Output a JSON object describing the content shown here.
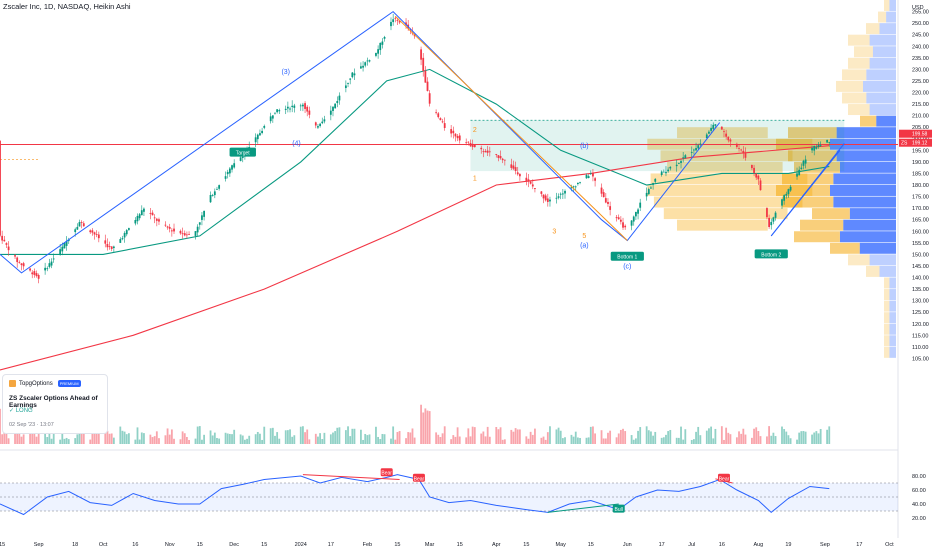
{
  "header": {
    "symbol_title": "Zscaler Inc, 1D, NASDAQ, Heikin Ashi"
  },
  "idea_card": {
    "brand": "TopgOptions",
    "badge": "PREMIUM",
    "title": "ZS Zscaler Options Ahead of Earnings",
    "side": "✓ LONG",
    "date": "02 Sep '23 · 13:07"
  },
  "chart_data": {
    "type": "candlestick",
    "series_style": "Heikin Ashi",
    "x_range": [
      "2023-08-14",
      "2024-10-05"
    ],
    "ylim": [
      100,
      260
    ],
    "ycurrency": "USD",
    "price_ticks": [
      105,
      110,
      115,
      120,
      125,
      130,
      135,
      140,
      145,
      150,
      155,
      160,
      165,
      170,
      175,
      180,
      185,
      190,
      195,
      200,
      205,
      210,
      215,
      220,
      225,
      230,
      235,
      240,
      245,
      250,
      255
    ],
    "price_labels": {
      "last": "199.58",
      "marker_symbol": "ZS",
      "marker_value": "199.12"
    },
    "horizontal_level": 197.5,
    "x_ticks": [
      {
        "date": "2023-08-15",
        "label": "15"
      },
      {
        "date": "2023-09-01",
        "label": "Sep"
      },
      {
        "date": "2023-09-18",
        "label": "18"
      },
      {
        "date": "2023-10-01",
        "label": "Oct"
      },
      {
        "date": "2023-10-16",
        "label": "16"
      },
      {
        "date": "2023-11-01",
        "label": "Nov"
      },
      {
        "date": "2023-11-15",
        "label": "15"
      },
      {
        "date": "2023-12-01",
        "label": "Dec"
      },
      {
        "date": "2023-12-15",
        "label": "15"
      },
      {
        "date": "2024-01-01",
        "label": "2024"
      },
      {
        "date": "2024-01-15",
        "label": "17"
      },
      {
        "date": "2024-02-01",
        "label": "Feb"
      },
      {
        "date": "2024-02-15",
        "label": "15"
      },
      {
        "date": "2024-03-01",
        "label": "Mar"
      },
      {
        "date": "2024-03-15",
        "label": "15"
      },
      {
        "date": "2024-04-01",
        "label": "Apr"
      },
      {
        "date": "2024-04-15",
        "label": "15"
      },
      {
        "date": "2024-05-01",
        "label": "May"
      },
      {
        "date": "2024-05-15",
        "label": "15"
      },
      {
        "date": "2024-06-01",
        "label": "Jun"
      },
      {
        "date": "2024-06-17",
        "label": "17"
      },
      {
        "date": "2024-07-01",
        "label": "Jul"
      },
      {
        "date": "2024-07-15",
        "label": "16"
      },
      {
        "date": "2024-08-01",
        "label": "Aug"
      },
      {
        "date": "2024-08-15",
        "label": "19"
      },
      {
        "date": "2024-09-01",
        "label": "Sep"
      },
      {
        "date": "2024-09-17",
        "label": "17"
      },
      {
        "date": "2024-10-01",
        "label": "Oct"
      }
    ],
    "price_path": [
      [
        "2023-08-14",
        158
      ],
      [
        "2023-08-22",
        147
      ],
      [
        "2023-09-01",
        140
      ],
      [
        "2023-09-12",
        153
      ],
      [
        "2023-09-20",
        164
      ],
      [
        "2023-09-28",
        158
      ],
      [
        "2023-10-05",
        152
      ],
      [
        "2023-10-12",
        160
      ],
      [
        "2023-10-20",
        170
      ],
      [
        "2023-10-28",
        163
      ],
      [
        "2023-11-03",
        160
      ],
      [
        "2023-11-12",
        158
      ],
      [
        "2023-11-20",
        175
      ],
      [
        "2023-11-30",
        188
      ],
      [
        "2023-12-08",
        196
      ],
      [
        "2023-12-20",
        212
      ],
      [
        "2024-01-02",
        215
      ],
      [
        "2024-01-08",
        205
      ],
      [
        "2024-01-15",
        212
      ],
      [
        "2024-01-25",
        228
      ],
      [
        "2024-02-05",
        237
      ],
      [
        "2024-02-13",
        252
      ],
      [
        "2024-02-18",
        250
      ],
      [
        "2024-02-24",
        243
      ],
      [
        "2024-02-27",
        230
      ],
      [
        "2024-03-01",
        215
      ],
      [
        "2024-03-08",
        205
      ],
      [
        "2024-03-15",
        200
      ],
      [
        "2024-03-25",
        195
      ],
      [
        "2024-04-03",
        192
      ],
      [
        "2024-04-15",
        182
      ],
      [
        "2024-04-25",
        173
      ],
      [
        "2024-05-05",
        178
      ],
      [
        "2024-05-15",
        185
      ],
      [
        "2024-05-25",
        168
      ],
      [
        "2024-06-01",
        160
      ],
      [
        "2024-06-07",
        172
      ],
      [
        "2024-06-15",
        184
      ],
      [
        "2024-06-25",
        190
      ],
      [
        "2024-07-05",
        198
      ],
      [
        "2024-07-12",
        207
      ],
      [
        "2024-07-18",
        200
      ],
      [
        "2024-07-25",
        194
      ],
      [
        "2024-08-01",
        182
      ],
      [
        "2024-08-06",
        162
      ],
      [
        "2024-08-10",
        170
      ],
      [
        "2024-08-18",
        183
      ],
      [
        "2024-08-25",
        195
      ],
      [
        "2024-08-30",
        198
      ],
      [
        "2024-09-03",
        199.12
      ]
    ],
    "moving_averages": [
      {
        "name": "MA fast",
        "color": "#089981",
        "points": [
          [
            "2023-08-14",
            150
          ],
          [
            "2023-10-01",
            150
          ],
          [
            "2023-11-15",
            158
          ],
          [
            "2024-01-01",
            190
          ],
          [
            "2024-02-10",
            225
          ],
          [
            "2024-03-01",
            230
          ],
          [
            "2024-04-01",
            215
          ],
          [
            "2024-05-01",
            195
          ],
          [
            "2024-06-10",
            180
          ],
          [
            "2024-07-15",
            185
          ],
          [
            "2024-08-15",
            185
          ],
          [
            "2024-09-03",
            188
          ]
        ]
      },
      {
        "name": "MA slow",
        "color": "#f23645",
        "points": [
          [
            "2023-08-14",
            100
          ],
          [
            "2023-10-15",
            115
          ],
          [
            "2023-12-15",
            135
          ],
          [
            "2024-02-15",
            160
          ],
          [
            "2024-04-01",
            180
          ],
          [
            "2024-05-15",
            185
          ],
          [
            "2024-07-01",
            192
          ],
          [
            "2024-09-03",
            197
          ]
        ]
      }
    ],
    "volume_profile": [
      {
        "low": 105,
        "high": 110,
        "vol": 0.1
      },
      {
        "low": 110,
        "high": 115,
        "vol": 0.1
      },
      {
        "low": 115,
        "high": 120,
        "vol": 0.1
      },
      {
        "low": 120,
        "high": 125,
        "vol": 0.1
      },
      {
        "low": 125,
        "high": 130,
        "vol": 0.1
      },
      {
        "low": 130,
        "high": 135,
        "vol": 0.1
      },
      {
        "low": 135,
        "high": 140,
        "vol": 0.1
      },
      {
        "low": 140,
        "high": 145,
        "vol": 0.25
      },
      {
        "low": 145,
        "high": 150,
        "vol": 0.4
      },
      {
        "low": 150,
        "high": 155,
        "vol": 0.55
      },
      {
        "low": 155,
        "high": 160,
        "vol": 0.85
      },
      {
        "low": 160,
        "high": 165,
        "vol": 0.8
      },
      {
        "low": 165,
        "high": 170,
        "vol": 0.7
      },
      {
        "low": 170,
        "high": 175,
        "vol": 0.95
      },
      {
        "low": 175,
        "high": 180,
        "vol": 1.0
      },
      {
        "low": 180,
        "high": 185,
        "vol": 0.95
      },
      {
        "low": 185,
        "high": 190,
        "vol": 0.85
      },
      {
        "low": 190,
        "high": 195,
        "vol": 0.9
      },
      {
        "low": 195,
        "high": 200,
        "vol": 1.0
      },
      {
        "low": 200,
        "high": 205,
        "vol": 0.9
      },
      {
        "low": 205,
        "high": 210,
        "vol": 0.3
      },
      {
        "low": 210,
        "high": 215,
        "vol": 0.4
      },
      {
        "low": 215,
        "high": 220,
        "vol": 0.45
      },
      {
        "low": 220,
        "high": 225,
        "vol": 0.5
      },
      {
        "low": 225,
        "high": 230,
        "vol": 0.45
      },
      {
        "low": 230,
        "high": 235,
        "vol": 0.4
      },
      {
        "low": 235,
        "high": 240,
        "vol": 0.35
      },
      {
        "low": 240,
        "high": 245,
        "vol": 0.4
      },
      {
        "low": 245,
        "high": 250,
        "vol": 0.25
      },
      {
        "low": 250,
        "high": 255,
        "vol": 0.15
      },
      {
        "low": 255,
        "high": 260,
        "vol": 0.1
      }
    ],
    "trend_lines": [
      {
        "color": "#2962ff",
        "points": [
          [
            "2023-08-14",
            150
          ],
          [
            "2023-08-24",
            142
          ],
          [
            "2024-02-13",
            255
          ],
          [
            "2024-05-20",
            165
          ],
          [
            "2024-06-01",
            156
          ],
          [
            "2024-07-14",
            207
          ]
        ]
      },
      {
        "color": "#f7931a",
        "points": [
          [
            "2024-02-14",
            253
          ],
          [
            "2024-06-01",
            156
          ]
        ]
      },
      {
        "color": "#2962ff",
        "points": [
          [
            "2024-08-07",
            158
          ],
          [
            "2024-09-08",
            195
          ]
        ]
      },
      {
        "color": "#2962ff",
        "points": [
          [
            "2024-08-07",
            158
          ],
          [
            "2024-09-10",
            198
          ]
        ]
      }
    ],
    "wave_labels": [
      {
        "date": "2023-12-25",
        "price": 228,
        "text": "(3)",
        "color": "#2962ff"
      },
      {
        "date": "2023-12-30",
        "price": 197,
        "text": "(4)",
        "color": "#2962ff"
      },
      {
        "date": "2024-03-22",
        "price": 203,
        "text": "2",
        "color": "#f7931a"
      },
      {
        "date": "2024-03-22",
        "price": 182,
        "text": "1",
        "color": "#f7931a"
      },
      {
        "date": "2024-04-28",
        "price": 159,
        "text": "3",
        "color": "#f7931a"
      },
      {
        "date": "2024-05-12",
        "price": 196,
        "text": "(b)",
        "color": "#2962ff"
      },
      {
        "date": "2024-05-12",
        "price": 157,
        "text": "5",
        "color": "#f7931a"
      },
      {
        "date": "2024-05-12",
        "price": 153,
        "text": "(a)",
        "color": "#2962ff"
      },
      {
        "date": "2024-06-01",
        "price": 144,
        "text": "(c)",
        "color": "#2962ff"
      }
    ],
    "tags": [
      {
        "date": "2023-12-05",
        "price": 194,
        "text": "Target",
        "color": "#089981"
      },
      {
        "date": "2024-06-01",
        "price": 149,
        "text": "Bottom 1",
        "color": "#089981"
      },
      {
        "date": "2024-08-07",
        "price": 150,
        "text": "Bottom 2",
        "color": "#089981"
      }
    ],
    "rsi": {
      "ticks": [
        20,
        40,
        60,
        80
      ],
      "band": [
        30,
        70
      ],
      "points": [
        [
          "2023-08-14",
          40
        ],
        [
          "2023-08-25",
          25
        ],
        [
          "2023-09-05",
          50
        ],
        [
          "2023-09-15",
          58
        ],
        [
          "2023-09-25",
          42
        ],
        [
          "2023-10-05",
          38
        ],
        [
          "2023-10-15",
          55
        ],
        [
          "2023-10-25",
          45
        ],
        [
          "2023-11-05",
          40
        ],
        [
          "2023-11-15",
          40
        ],
        [
          "2023-11-25",
          62
        ],
        [
          "2023-12-05",
          68
        ],
        [
          "2023-12-15",
          75
        ],
        [
          "2024-01-01",
          80
        ],
        [
          "2024-01-10",
          70
        ],
        [
          "2024-01-20",
          78
        ],
        [
          "2024-02-01",
          72
        ],
        [
          "2024-02-10",
          78
        ],
        [
          "2024-02-15",
          82
        ],
        [
          "2024-02-25",
          75
        ],
        [
          "2024-03-01",
          50
        ],
        [
          "2024-03-10",
          42
        ],
        [
          "2024-03-20",
          45
        ],
        [
          "2024-04-01",
          38
        ],
        [
          "2024-04-15",
          32
        ],
        [
          "2024-04-25",
          28
        ],
        [
          "2024-05-05",
          40
        ],
        [
          "2024-05-15",
          45
        ],
        [
          "2024-05-28",
          32
        ],
        [
          "2024-06-05",
          50
        ],
        [
          "2024-06-15",
          60
        ],
        [
          "2024-06-25",
          58
        ],
        [
          "2024-07-05",
          65
        ],
        [
          "2024-07-14",
          75
        ],
        [
          "2024-07-22",
          60
        ],
        [
          "2024-08-01",
          45
        ],
        [
          "2024-08-07",
          28
        ],
        [
          "2024-08-15",
          48
        ],
        [
          "2024-08-25",
          65
        ],
        [
          "2024-09-03",
          62
        ]
      ],
      "divergence_lines": [
        {
          "color": "#f23645",
          "points": [
            [
              "2024-01-02",
              82
            ],
            [
              "2024-02-16",
              75
            ]
          ]
        },
        {
          "color": "#089981",
          "points": [
            [
              "2024-04-25",
              28
            ],
            [
              "2024-05-28",
              40
            ]
          ]
        },
        {
          "color": "#f23645",
          "points": [
            [
              "2024-07-12",
              76
            ],
            [
              "2024-07-20",
              70
            ]
          ]
        }
      ],
      "tags": [
        {
          "date": "2024-02-10",
          "value": 84,
          "text": "Bear",
          "color": "#f23645"
        },
        {
          "date": "2024-02-25",
          "value": 76,
          "text": "Bear",
          "color": "#f23645"
        },
        {
          "date": "2024-05-28",
          "value": 32,
          "text": "Bull",
          "color": "#089981"
        },
        {
          "date": "2024-07-16",
          "value": 76,
          "text": "Bear",
          "color": "#f23645"
        }
      ]
    }
  },
  "colors": {
    "up": "#089981",
    "down": "#f23645",
    "blue": "#2962ff",
    "orange": "#f7931a"
  }
}
